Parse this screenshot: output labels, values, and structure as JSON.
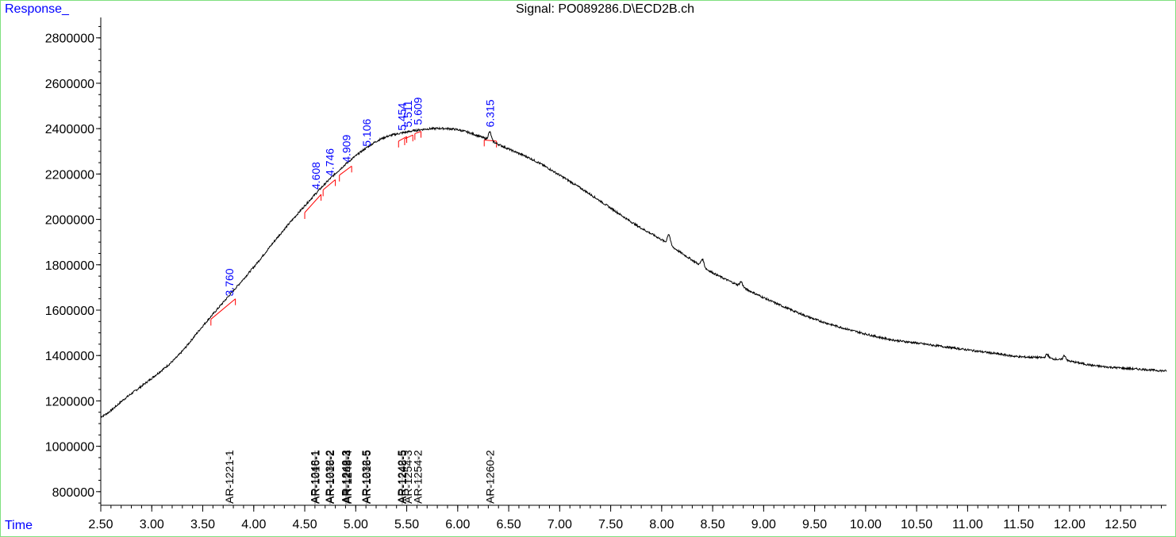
{
  "header": {
    "y_axis_label": "Response_",
    "x_axis_label": "Time",
    "title": "Signal: PO089286.D\\ECD2B.ch"
  },
  "colors": {
    "trace": "#000000",
    "baseline": "#ff0000",
    "rt_label": "#0000ff",
    "compound_label": "#000000",
    "frame": "#7fe07f"
  },
  "chart_data": {
    "type": "line",
    "title": "Signal: PO089286.D\\ECD2B.ch",
    "xlabel": "Time",
    "ylabel": "Response_",
    "xlim": [
      2.5,
      12.95
    ],
    "ylim": [
      740000,
      2890000
    ],
    "x_ticks": [
      2.5,
      3.0,
      3.5,
      4.0,
      4.5,
      5.0,
      5.5,
      6.0,
      6.5,
      7.0,
      7.5,
      8.0,
      8.5,
      9.0,
      9.5,
      10.0,
      10.5,
      11.0,
      11.5,
      12.0,
      12.5
    ],
    "x_tick_labels": [
      "2.50",
      "3.00",
      "3.50",
      "4.00",
      "4.50",
      "5.00",
      "5.50",
      "6.00",
      "6.50",
      "7.00",
      "7.50",
      "8.00",
      "8.50",
      "9.00",
      "9.50",
      "10.00",
      "10.50",
      "11.00",
      "11.50",
      "12.00",
      "12.50"
    ],
    "y_ticks": [
      800000,
      1000000,
      1200000,
      1400000,
      1600000,
      1800000,
      2000000,
      2200000,
      2400000,
      2600000,
      2800000
    ],
    "y_tick_labels": [
      "800000",
      "1000000",
      "1200000",
      "1400000",
      "1600000",
      "1800000",
      "2000000",
      "2200000",
      "2400000",
      "2600000",
      "2800000"
    ],
    "series": [
      {
        "x": [
          2.5,
          2.75,
          3.0,
          3.25,
          3.5,
          3.75,
          4.0,
          4.25,
          4.5,
          4.75,
          5.0,
          5.25,
          5.5,
          5.75,
          6.0,
          6.25,
          6.5,
          6.75,
          7.0,
          7.25,
          7.5,
          7.75,
          8.0,
          8.25,
          8.5,
          8.75,
          9.0,
          9.25,
          9.5,
          9.75,
          10.0,
          10.25,
          10.5,
          10.75,
          11.0,
          11.25,
          11.5,
          11.75,
          12.0,
          12.25,
          12.5,
          12.75,
          12.95
        ],
        "y": [
          1130000,
          1215000,
          1300000,
          1395000,
          1530000,
          1660000,
          1790000,
          1930000,
          2060000,
          2180000,
          2280000,
          2355000,
          2385000,
          2400000,
          2395000,
          2360000,
          2310000,
          2260000,
          2195000,
          2125000,
          2050000,
          1975000,
          1910000,
          1835000,
          1765000,
          1710000,
          1655000,
          1605000,
          1560000,
          1525000,
          1495000,
          1470000,
          1455000,
          1440000,
          1425000,
          1410000,
          1395000,
          1390000,
          1375000,
          1355000,
          1345000,
          1338000,
          1332000
        ]
      }
    ],
    "local_peaks": [
      {
        "x": 6.315,
        "y": 2385000
      },
      {
        "x": 8.07,
        "y": 1935000
      },
      {
        "x": 8.4,
        "y": 1825000
      },
      {
        "x": 8.78,
        "y": 1725000
      },
      {
        "x": 11.78,
        "y": 1405000
      },
      {
        "x": 11.95,
        "y": 1400000
      }
    ],
    "peak_labels": [
      {
        "rt": 3.76,
        "label": "3.760",
        "y": 1640000
      },
      {
        "rt": 4.608,
        "label": "4.608",
        "y": 2110000
      },
      {
        "rt": 4.746,
        "label": "4.746",
        "y": 2170000
      },
      {
        "rt": 4.909,
        "label": "4.909",
        "y": 2230000
      },
      {
        "rt": 5.106,
        "label": "5.106",
        "y": 2300000
      },
      {
        "rt": 5.454,
        "label": "5.454",
        "y": 2370000
      },
      {
        "rt": 5.511,
        "label": "5.511",
        "y": 2385000
      },
      {
        "rt": 5.609,
        "label": "5.609",
        "y": 2395000
      },
      {
        "rt": 6.315,
        "label": "6.315",
        "y": 2385000
      }
    ],
    "baselines": [
      {
        "x1": 3.58,
        "y1": 1560000,
        "x2": 3.82,
        "y2": 1650000
      },
      {
        "x1": 4.5,
        "y1": 2030000,
        "x2": 4.66,
        "y2": 2110000
      },
      {
        "x1": 4.68,
        "y1": 2130000,
        "x2": 4.8,
        "y2": 2175000
      },
      {
        "x1": 4.84,
        "y1": 2195000,
        "x2": 4.96,
        "y2": 2235000
      },
      {
        "x1": 5.42,
        "y1": 2345000,
        "x2": 5.5,
        "y2": 2365000
      },
      {
        "x1": 5.48,
        "y1": 2355000,
        "x2": 5.56,
        "y2": 2372000
      },
      {
        "x1": 5.58,
        "y1": 2378000,
        "x2": 5.64,
        "y2": 2388000
      },
      {
        "x1": 6.26,
        "y1": 2350000,
        "x2": 6.38,
        "y2": 2345000
      }
    ],
    "compound_markers": [
      {
        "rt": 3.76,
        "label": "AR-1221-1"
      },
      {
        "rt": 4.596,
        "label": "AR-1248-1"
      },
      {
        "rt": 4.604,
        "label": "AR-1016-1"
      },
      {
        "rt": 4.742,
        "label": "AR-1232-2"
      },
      {
        "rt": 4.75,
        "label": "AR-1016-2"
      },
      {
        "rt": 4.902,
        "label": "AR-1242-3"
      },
      {
        "rt": 4.91,
        "label": "AR-1268-3"
      },
      {
        "rt": 4.918,
        "label": "AR-1248-4"
      },
      {
        "rt": 5.1,
        "label": "AR-1232-5"
      },
      {
        "rt": 5.108,
        "label": "AR-1016-5"
      },
      {
        "rt": 5.45,
        "label": "AR-1242-5"
      },
      {
        "rt": 5.458,
        "label": "AR-1248-5"
      },
      {
        "rt": 5.511,
        "label": "AR-1254-3"
      },
      {
        "rt": 5.609,
        "label": "AR-1254-2"
      },
      {
        "rt": 6.315,
        "label": "AR-1260-2"
      }
    ]
  }
}
